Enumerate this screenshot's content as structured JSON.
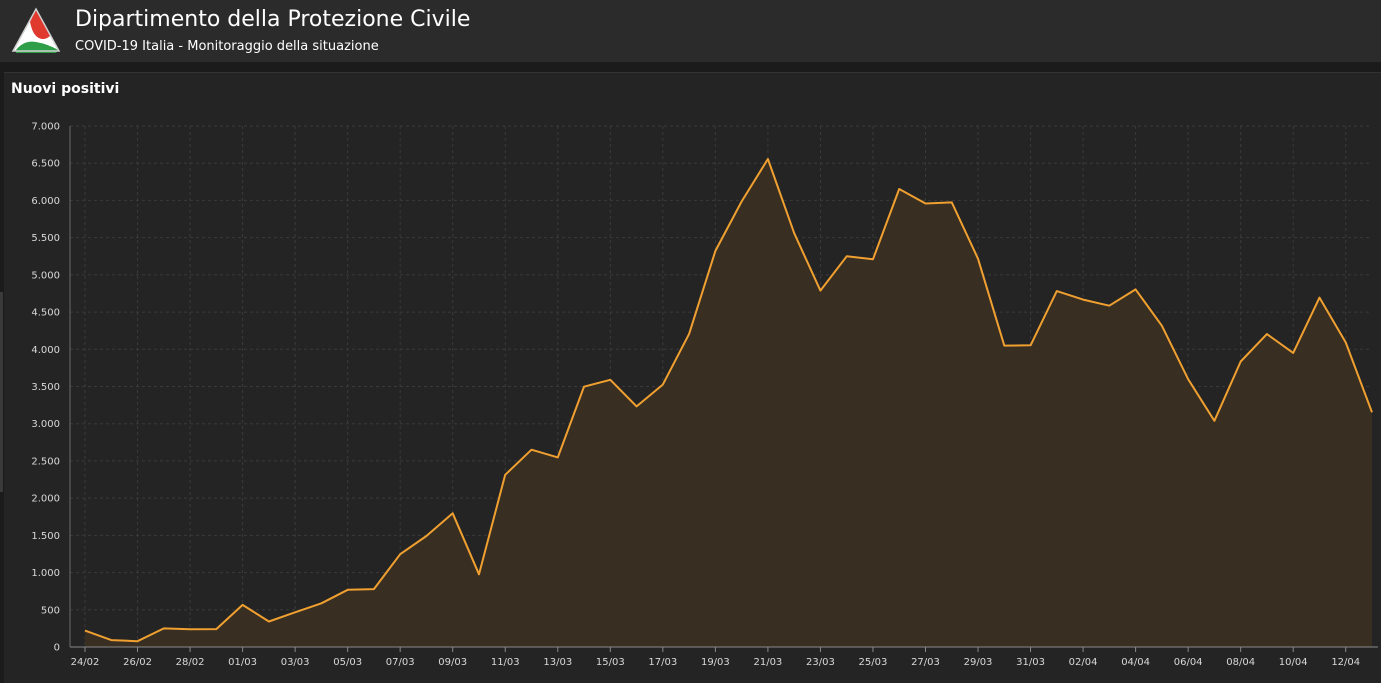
{
  "header": {
    "title": "Dipartimento della Protezione Civile",
    "subtitle": "COVID-19 Italia - Monitoraggio della situazione",
    "logo_icon": "protezione-civile-triangle-logo",
    "logo_colors": [
      "#e03a2f",
      "#ffffff",
      "#2e9e49"
    ]
  },
  "panel": {
    "title": "Nuovi positivi"
  },
  "chart_data": {
    "type": "area",
    "title": "Nuovi positivi",
    "xlabel": "",
    "ylabel": "",
    "ylim": [
      0,
      7000
    ],
    "yticks": [
      0,
      500,
      1000,
      1500,
      2000,
      2500,
      3000,
      3500,
      4000,
      4500,
      5000,
      5500,
      6000,
      6500,
      7000
    ],
    "ytick_labels": [
      "0",
      "500",
      "1.000",
      "1.500",
      "2.000",
      "2.500",
      "3.000",
      "3.500",
      "4.000",
      "4.500",
      "5.000",
      "5.500",
      "6.000",
      "6.500",
      "7.000"
    ],
    "grid": true,
    "x": [
      "24/02",
      "25/02",
      "26/02",
      "27/02",
      "28/02",
      "29/02",
      "01/03",
      "02/03",
      "03/03",
      "04/03",
      "05/03",
      "06/03",
      "07/03",
      "08/03",
      "09/03",
      "10/03",
      "11/03",
      "12/03",
      "13/03",
      "14/03",
      "15/03",
      "16/03",
      "17/03",
      "18/03",
      "19/03",
      "20/03",
      "21/03",
      "22/03",
      "23/03",
      "24/03",
      "25/03",
      "26/03",
      "27/03",
      "28/03",
      "29/03",
      "30/03",
      "31/03",
      "01/04",
      "02/04",
      "03/04",
      "04/04",
      "05/04",
      "06/04",
      "07/04",
      "08/04",
      "09/04",
      "10/04",
      "11/04",
      "12/04",
      "13/04"
    ],
    "xtick_labels": [
      "24/02",
      "26/02",
      "28/02",
      "01/03",
      "03/03",
      "05/03",
      "07/03",
      "09/03",
      "11/03",
      "13/03",
      "15/03",
      "17/03",
      "19/03",
      "21/03",
      "23/03",
      "25/03",
      "27/03",
      "29/03",
      "31/03",
      "02/04",
      "04/04",
      "06/04",
      "08/04",
      "10/04",
      "12/04"
    ],
    "series": [
      {
        "color": "#f0a030",
        "fill": "#3a2f22",
        "values": [
          221,
          93,
          78,
          250,
          238,
          240,
          566,
          342,
          466,
          587,
          769,
          778,
          1247,
          1492,
          1797,
          977,
          2313,
          2651,
          2547,
          3497,
          3590,
          3233,
          3526,
          4207,
          5322,
          5986,
          6557,
          5560,
          4789,
          5249,
          5210,
          6153,
          5959,
          5974,
          5217,
          4050,
          4053,
          4782,
          4668,
          4585,
          4805,
          4316,
          3599,
          3039,
          3836,
          4204,
          3951,
          4694,
          4092,
          3153
        ]
      }
    ]
  }
}
